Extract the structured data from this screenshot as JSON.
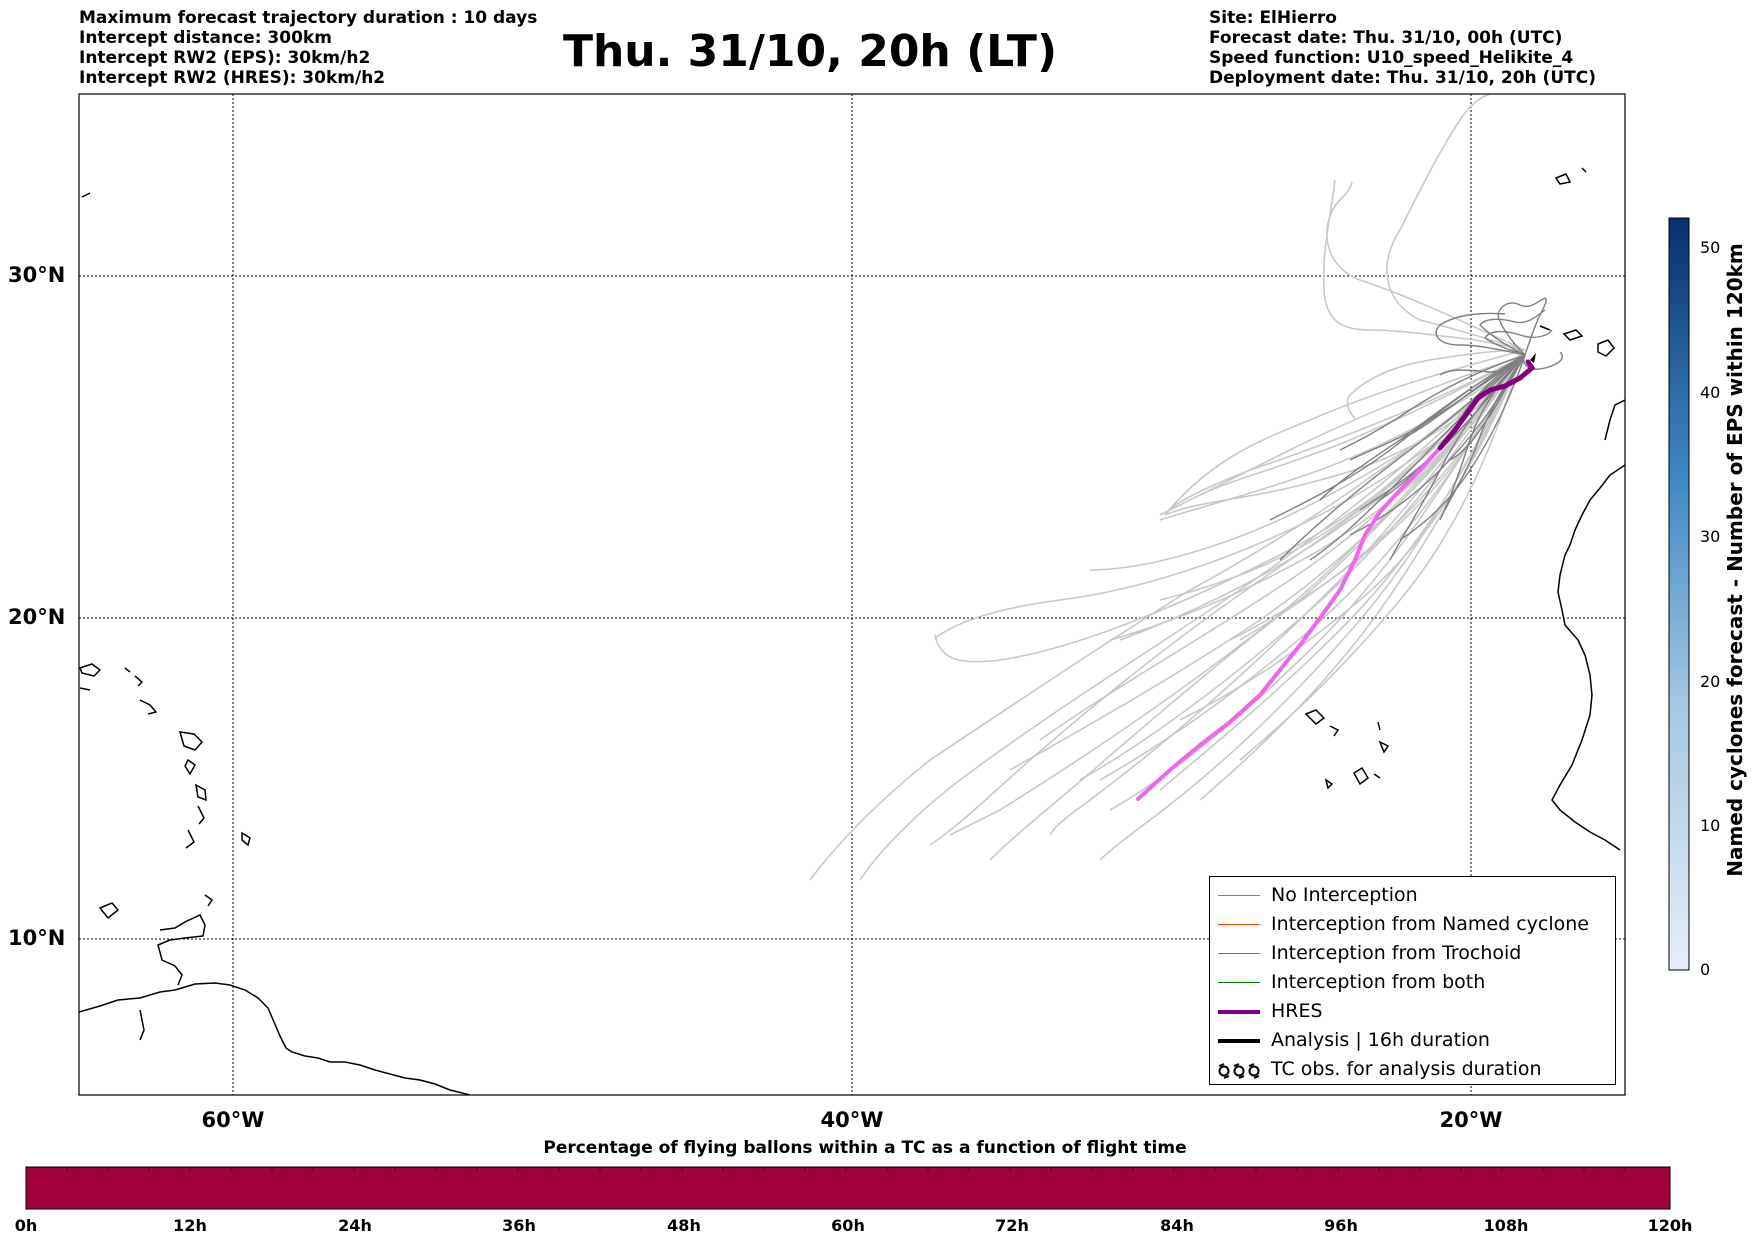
{
  "header_left": [
    "Maximum forecast trajectory duration : 10 days",
    "Intercept distance: 300km",
    "Intercept RW2 (EPS):  30km/h2",
    "Intercept RW2 (HRES): 30km/h2"
  ],
  "title": "Thu. 31/10, 20h (LT)",
  "header_right": [
    "Site: ElHierro",
    "Forecast date: Thu. 31/10, 00h (UTC)",
    "Speed function: U10_speed_Helikite_4",
    "Deployment date: Thu. 31/10, 20h (UTC)"
  ],
  "map": {
    "lat_labels": [
      "30°N",
      "20°N",
      "10°N"
    ],
    "lon_labels": [
      "60°W",
      "40°W",
      "20°W"
    ],
    "gridlines": "dotted",
    "release_site": "ElHierro"
  },
  "legend": [
    {
      "label": "No Interception",
      "color": "#808080",
      "style": "thin"
    },
    {
      "label": "Interception from Named cyclone",
      "color": "#ff4500",
      "style": "thin"
    },
    {
      "label": "Interception from Trochoid",
      "color": "#808000",
      "style": "thin"
    },
    {
      "label": "Interception from both",
      "color": "#008000",
      "style": "thin"
    },
    {
      "label": "HRES",
      "color": "#800080",
      "style": "thick"
    },
    {
      "label": "Analysis | 16h duration",
      "color": "#000000",
      "style": "thick"
    },
    {
      "label": "TC obs. for analysis duration",
      "color": "#000000",
      "style": "symbol",
      "icon": "cyclone-symbols-icon"
    }
  ],
  "colorbar": {
    "title": "Named cyclones forecast - Number of EPS within 120km",
    "ticks": [
      "0",
      "10",
      "20",
      "30",
      "40",
      "50"
    ],
    "range": [
      0,
      52
    ],
    "color_low": "#e6eef8",
    "color_high": "#08306b"
  },
  "flight_time_bar": {
    "title": "Percentage of flying ballons within a TC as a function of flight time",
    "ticks": [
      "0h",
      "12h",
      "24h",
      "36h",
      "48h",
      "60h",
      "72h",
      "84h",
      "96h",
      "108h",
      "120h"
    ],
    "fill_color": "#a0003c"
  },
  "colors": {
    "eps_no_interception": "#808080",
    "eps_faint": "#c8c8c8",
    "hres_early": "#800080",
    "hres_late": "#ee66ee"
  }
}
